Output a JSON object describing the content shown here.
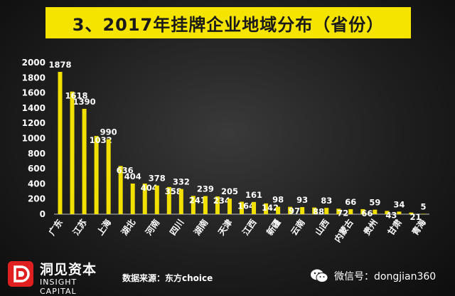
{
  "title": "3、2017年挂牌企业地域分布（省份）",
  "footer": {
    "logo_cn": "洞见资本",
    "logo_en": "INSIGHT CAPITAL",
    "source": "数据来源：东方choice",
    "wechat": "微信号：dongjian360"
  },
  "colors": {
    "bar": "#f2e100",
    "title_bg": "#f5e400",
    "logo_red": "#e02020"
  },
  "chart_data": {
    "type": "bar",
    "title": "3、2017年挂牌企业地域分布（省份）",
    "xlabel": "",
    "ylabel": "",
    "ylim": [
      0,
      2000
    ],
    "yticks": [
      0,
      200,
      400,
      600,
      800,
      1000,
      1200,
      1400,
      1600,
      1800,
      2000
    ],
    "grid": false,
    "legend": "none",
    "values": [
      1878,
      1618,
      1390,
      1032,
      990,
      636,
      404,
      404,
      378,
      358,
      332,
      241,
      239,
      234,
      205,
      164,
      161,
      142,
      98,
      97,
      93,
      88,
      83,
      72,
      66,
      66,
      59,
      43,
      34,
      21,
      5
    ],
    "category_labels": [
      {
        "index": 0,
        "text": "广东"
      },
      {
        "index": 2,
        "text": "江苏"
      },
      {
        "index": 4,
        "text": "上海"
      },
      {
        "index": 6,
        "text": "湖北"
      },
      {
        "index": 8,
        "text": "河南"
      },
      {
        "index": 10,
        "text": "四川"
      },
      {
        "index": 12,
        "text": "湖南"
      },
      {
        "index": 14,
        "text": "天津"
      },
      {
        "index": 16,
        "text": "江西"
      },
      {
        "index": 18,
        "text": "新疆"
      },
      {
        "index": 20,
        "text": "云南"
      },
      {
        "index": 22,
        "text": "山西"
      },
      {
        "index": 24,
        "text": "内蒙古"
      },
      {
        "index": 26,
        "text": "贵州"
      },
      {
        "index": 28,
        "text": "甘肃"
      },
      {
        "index": 30,
        "text": "青海"
      }
    ]
  }
}
